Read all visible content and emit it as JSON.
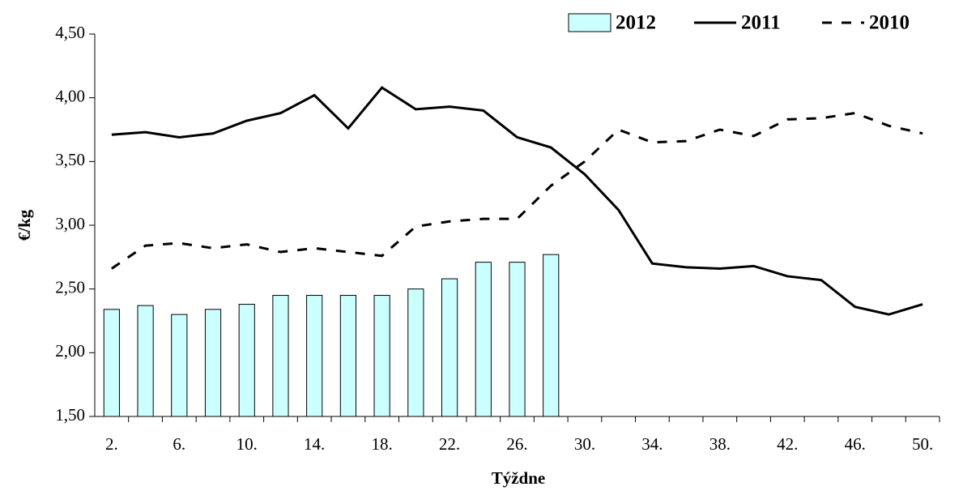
{
  "chart_data": {
    "type": "combo",
    "x_label": "Týždne",
    "y_label": "€/kg",
    "categories": [
      "2.",
      null,
      "6.",
      null,
      "10.",
      null,
      "14.",
      null,
      "18.",
      null,
      "22.",
      null,
      "26.",
      null,
      "30.",
      null,
      "34.",
      null,
      "38.",
      null,
      "42.",
      null,
      "46.",
      null,
      "50."
    ],
    "ylim": [
      1.5,
      4.5
    ],
    "yticks": [
      {
        "value": 1.5,
        "label": "1,50"
      },
      {
        "value": 2,
        "label": "2,00"
      },
      {
        "value": 2.5,
        "label": "2,50"
      },
      {
        "value": 3,
        "label": "3,00"
      },
      {
        "value": 3.5,
        "label": "3,50"
      },
      {
        "value": 4,
        "label": "4,00"
      },
      {
        "value": 4.5,
        "label": "4,50"
      }
    ],
    "grid": false,
    "legend": "top-right",
    "series": [
      {
        "name": "2012",
        "type": "bar",
        "color": "#ccffff",
        "values": [
          2.34,
          2.37,
          2.3,
          2.34,
          2.38,
          2.45,
          2.45,
          2.45,
          2.45,
          2.5,
          2.58,
          2.71,
          2.71,
          2.77,
          null,
          null,
          null,
          null,
          null,
          null,
          null,
          null,
          null,
          null,
          null
        ]
      },
      {
        "name": "2011",
        "type": "line",
        "color": "#000000",
        "line_style": "solid",
        "values": [
          3.71,
          3.73,
          3.69,
          3.72,
          3.82,
          3.88,
          4.02,
          3.76,
          4.08,
          3.91,
          3.93,
          3.9,
          3.69,
          3.61,
          3.4,
          3.12,
          2.7,
          2.67,
          2.66,
          2.68,
          2.6,
          2.57,
          2.36,
          2.3,
          2.38
        ]
      },
      {
        "name": "2010",
        "type": "line",
        "color": "#000000",
        "line_style": "dashed",
        "values": [
          2.66,
          2.84,
          2.86,
          2.82,
          2.85,
          2.79,
          2.82,
          2.79,
          2.76,
          2.99,
          3.03,
          3.05,
          3.05,
          3.31,
          3.5,
          3.75,
          3.65,
          3.66,
          3.75,
          3.7,
          3.83,
          3.84,
          3.88,
          3.78,
          3.72
        ]
      }
    ]
  }
}
